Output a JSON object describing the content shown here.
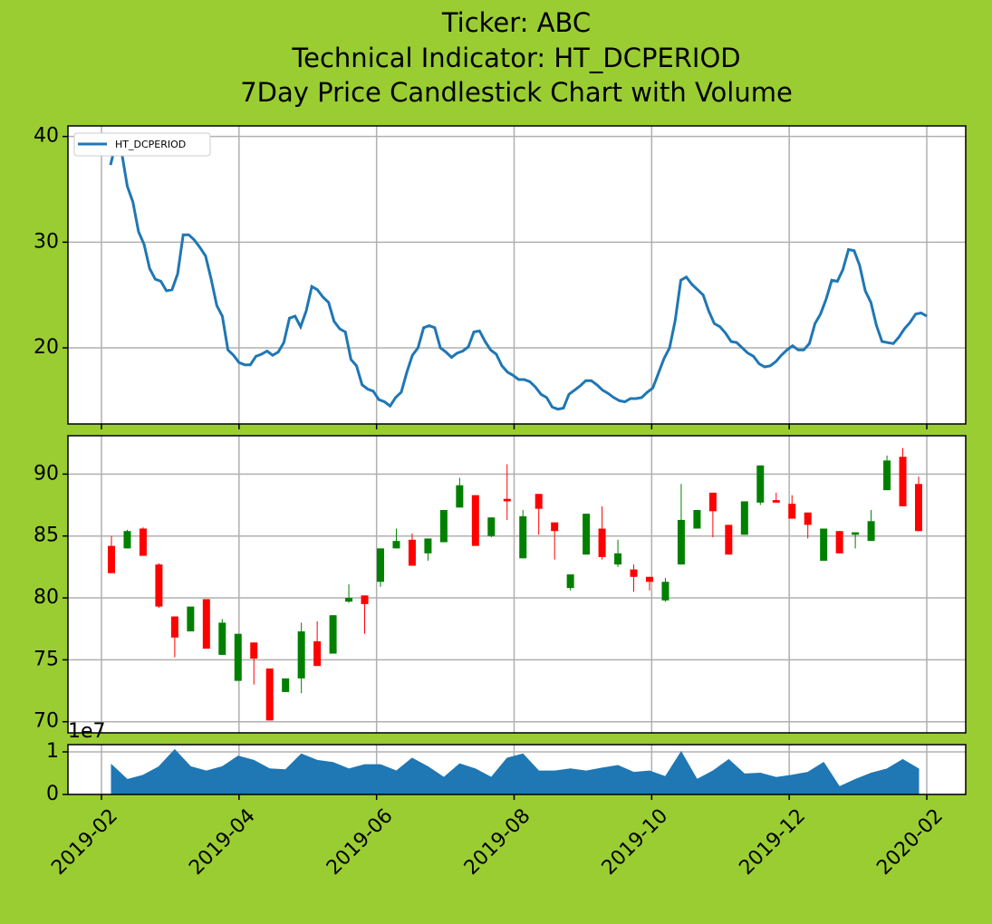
{
  "chart_data": [
    {
      "type": "line",
      "title": [
        "Ticker: ABC",
        "Technical Indicator: HT_DCPERIOD",
        "7Day Price Candlestick Chart with Volume"
      ],
      "series": [
        {
          "name": "HT_DCPERIOD",
          "color": "#1f77b4",
          "values": [
            37.3,
            39.5,
            38.5,
            35.3,
            33.8,
            31,
            29.8,
            27.5,
            26.5,
            26.3,
            25.4,
            25.5,
            27,
            30.7,
            30.7,
            30.2,
            29.5,
            28.7,
            26.5,
            24,
            23,
            19.8,
            19.3,
            18.6,
            18.4,
            18.4,
            19.2,
            19.4,
            19.7,
            19.3,
            19.6,
            20.5,
            22.8,
            23,
            22,
            23.5,
            25.8,
            25.5,
            24.8,
            24.3,
            22.5,
            21.8,
            21.5,
            18.9,
            18.3,
            16.5,
            16.1,
            15.9,
            15.1,
            14.9,
            14.5,
            15.3,
            15.8,
            17.7,
            19.3,
            20,
            21.9,
            22.1,
            21.9,
            20,
            19.6,
            19.1,
            19.5,
            19.7,
            20.1,
            21.5,
            21.6,
            20.6,
            19.8,
            19.4,
            18.3,
            17.7,
            17.4,
            17,
            17,
            16.8,
            16.3,
            15.6,
            15.3,
            14.4,
            14.2,
            14.3,
            15.6,
            16,
            16.4,
            16.9,
            16.9,
            16.5,
            16,
            15.7,
            15.3,
            15,
            14.9,
            15.2,
            15.2,
            15.3,
            15.8,
            16.2,
            17.6,
            19,
            20,
            22.6,
            26.4,
            26.7,
            26,
            25.5,
            25,
            23.5,
            22.3,
            22,
            21.4,
            20.6,
            20.5,
            20,
            19.5,
            19.2,
            18.5,
            18.2,
            18.3,
            18.7,
            19.3,
            19.8,
            20.2,
            19.8,
            19.8,
            20.4,
            22.3,
            23.2,
            24.6,
            26.4,
            26.3,
            27.4,
            29.3,
            29.2,
            27.8,
            25.4,
            24.3,
            22.1,
            20.6,
            20.5,
            20.4,
            21,
            21.8,
            22.4,
            23.2,
            23.3,
            23
          ]
        }
      ],
      "ylim": [
        12.8,
        41.0
      ],
      "yticks": [
        20,
        30,
        40
      ],
      "grid": true,
      "legend": "upper left"
    },
    {
      "type": "candlestick",
      "up_color": "green",
      "down_color": "red",
      "open": [
        84.2,
        84.0,
        85.6,
        82.7,
        78.5,
        77.3,
        79.9,
        75.4,
        73.3,
        76.4,
        74.3,
        72.4,
        73.5,
        76.5,
        75.5,
        79.7,
        80.2,
        81.3,
        84.0,
        84.7,
        83.6,
        84.5,
        87.3,
        88.3,
        85.0,
        88.0,
        83.2,
        88.4,
        86.1,
        80.8,
        83.5,
        85.6,
        82.7,
        82.3,
        81.7,
        79.8,
        82.7,
        85.6,
        88.5,
        85.9,
        85.1,
        87.7,
        87.9,
        87.6,
        86.9,
        83.0,
        85.4,
        85.1,
        84.6,
        88.7,
        91.4,
        89.2
      ],
      "high": [
        85.0,
        85.5,
        85.7,
        82.8,
        78.5,
        79.3,
        79.9,
        78.3,
        77.1,
        76.4,
        74.3,
        73.5,
        78.0,
        78.1,
        78.6,
        81.1,
        80.2,
        84.0,
        85.6,
        85.2,
        84.8,
        87.1,
        89.7,
        88.3,
        86.5,
        90.8,
        87.1,
        88.4,
        86.1,
        81.9,
        86.8,
        87.4,
        84.7,
        82.7,
        81.7,
        81.6,
        89.2,
        87.1,
        88.5,
        85.9,
        87.8,
        90.7,
        88.5,
        88.3,
        86.9,
        85.6,
        85.4,
        85.3,
        87.1,
        91.5,
        92.1,
        89.8
      ],
      "low": [
        82.0,
        84.0,
        83.4,
        79.2,
        75.2,
        77.3,
        75.9,
        75.4,
        73.3,
        73.0,
        70.1,
        72.4,
        72.3,
        74.5,
        75.5,
        79.6,
        77.1,
        80.9,
        84.0,
        82.6,
        83.0,
        84.5,
        87.3,
        84.2,
        84.9,
        86.3,
        83.2,
        85.1,
        83.1,
        80.6,
        83.5,
        83.1,
        82.5,
        80.5,
        80.6,
        79.7,
        82.7,
        85.6,
        84.9,
        83.5,
        85.1,
        87.5,
        87.7,
        86.4,
        84.8,
        83.0,
        83.6,
        84.0,
        84.6,
        88.7,
        87.4,
        85.4
      ],
      "close": [
        82.0,
        85.4,
        83.4,
        79.3,
        76.8,
        79.3,
        75.9,
        78.0,
        77.1,
        75.1,
        70.1,
        73.5,
        77.3,
        74.5,
        78.6,
        80.0,
        79.5,
        84.0,
        84.6,
        82.6,
        84.8,
        87.1,
        89.1,
        84.2,
        86.5,
        87.8,
        86.6,
        87.2,
        85.4,
        81.9,
        86.8,
        83.3,
        83.6,
        81.7,
        81.3,
        81.3,
        86.3,
        87.1,
        87.0,
        83.5,
        87.8,
        90.7,
        87.7,
        86.4,
        85.9,
        85.6,
        83.6,
        85.3,
        86.2,
        91.1,
        87.4,
        85.4
      ],
      "ylim": [
        69.1,
        93.1
      ],
      "yticks": [
        70,
        75,
        80,
        85,
        90
      ],
      "grid": true
    },
    {
      "type": "area",
      "color": "#1f77b4",
      "values": [
        7000000,
        3500000,
        4500000,
        6500000,
        10500000,
        6500000,
        5500000,
        6500000,
        9000000,
        8000000,
        6000000,
        5800000,
        9500000,
        8000000,
        7500000,
        6000000,
        7000000,
        7000000,
        5500000,
        8500000,
        6500000,
        4000000,
        7200000,
        6000000,
        4000000,
        8500000,
        9500000,
        5500000,
        5500000,
        6000000,
        5500000,
        6200000,
        6800000,
        5200000,
        5500000,
        4200000,
        10000000,
        3500000,
        5500000,
        8200000,
        4800000,
        5000000,
        4000000,
        4500000,
        5200000,
        7500000,
        1800000,
        3500000,
        5000000,
        6000000,
        8200000,
        6000000
      ],
      "ylim": [
        0,
        11700000
      ],
      "yticks": [
        0,
        {
          "value": 10000000,
          "label": "1"
        }
      ],
      "offset_label": "1e7",
      "grid": true,
      "x_labels": [
        "2019-02",
        "2019-04",
        "2019-06",
        "2019-08",
        "2019-10",
        "2019-12",
        "2020-02"
      ]
    }
  ]
}
